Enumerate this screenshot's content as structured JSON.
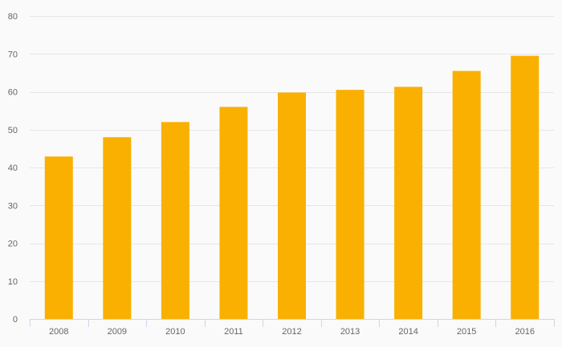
{
  "chart_data": {
    "type": "bar",
    "title": "",
    "xlabel": "",
    "ylabel": "",
    "categories": [
      "2008",
      "2009",
      "2010",
      "2011",
      "2012",
      "2013",
      "2014",
      "2015",
      "2016"
    ],
    "series": [
      {
        "values": [
          42.9,
          48.0,
          52.0,
          56.0,
          59.8,
          60.5,
          61.3,
          65.5,
          69.5
        ],
        "color": "#f9b000"
      }
    ],
    "ylim": [
      0,
      80
    ],
    "yticks": [
      0,
      10,
      20,
      30,
      40,
      50,
      60,
      70,
      80
    ],
    "grid": true,
    "legend": "none"
  }
}
